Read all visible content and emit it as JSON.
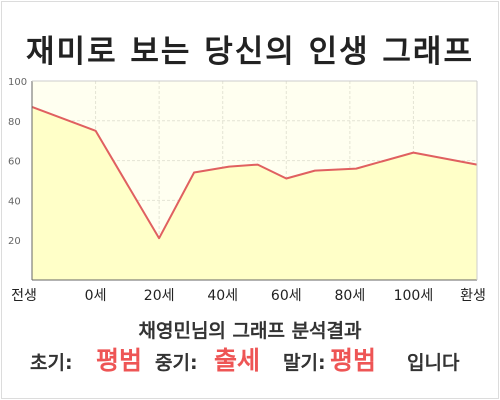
{
  "title": "재미로 보는 당신의 인생 그래프",
  "result_title": "채영민님의 그래프 분석결과",
  "result": {
    "early_label": "초기:",
    "early_value": "평범",
    "mid_label": "중기:",
    "mid_value": "출세",
    "late_label": "말기:",
    "late_value": "평범",
    "suffix": "입니다"
  },
  "colors": {
    "line": "#e06060",
    "fill": "#ffffc8",
    "plot_bg": "#fffff0",
    "grid": "#e4e4d4",
    "highlight": "#ee5555"
  },
  "chart_data": {
    "type": "area",
    "title": "",
    "xlabel": "",
    "ylabel": "",
    "ylim": [
      0,
      100
    ],
    "yticks": [
      20,
      40,
      60,
      80,
      100
    ],
    "grid": true,
    "legend": "none",
    "x_ticks": [
      "전생",
      "0세",
      "20세",
      "40세",
      "60세",
      "80세",
      "100세",
      "환생"
    ],
    "series": [
      {
        "points": [
          {
            "x": 0,
            "y": 87
          },
          {
            "x": 1,
            "y": 75
          },
          {
            "x": 2,
            "y": 21
          },
          {
            "x": 2.55,
            "y": 54
          },
          {
            "x": 3.1,
            "y": 57
          },
          {
            "x": 3.55,
            "y": 58
          },
          {
            "x": 4,
            "y": 51
          },
          {
            "x": 4.45,
            "y": 55
          },
          {
            "x": 5.1,
            "y": 56
          },
          {
            "x": 6,
            "y": 64
          },
          {
            "x": 7,
            "y": 58
          }
        ]
      }
    ]
  }
}
